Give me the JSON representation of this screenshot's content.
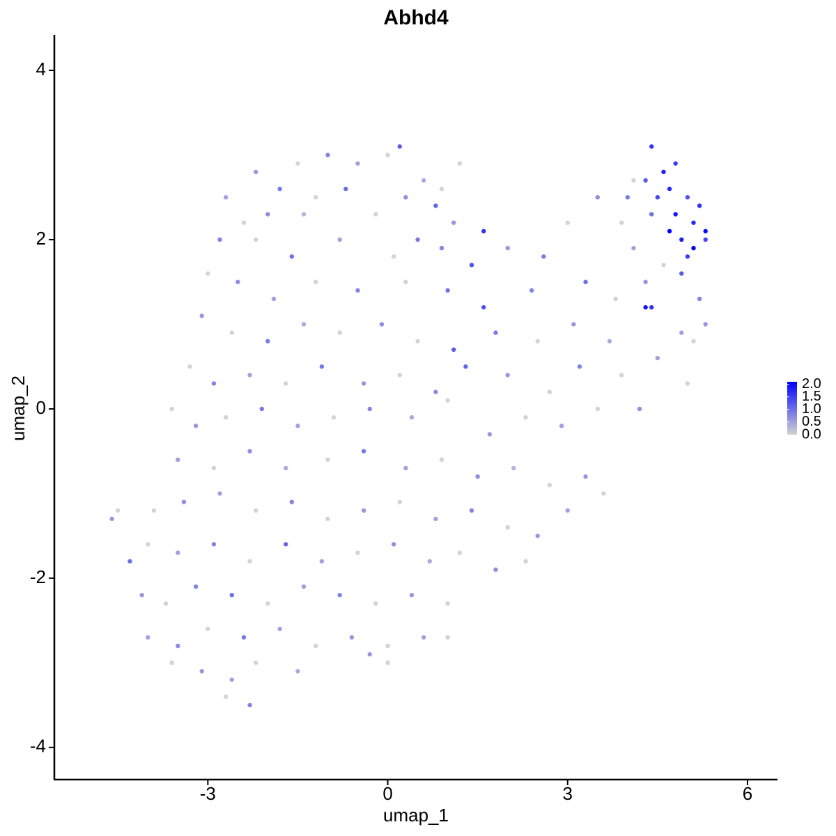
{
  "chart_data": {
    "type": "scatter",
    "title": "Abhd4",
    "x_label": "umap_1",
    "y_label": "umap_2",
    "xlim": [
      -5.56,
      6.5
    ],
    "ylim": [
      -4.38,
      4.42
    ],
    "xticks": [
      -3,
      0,
      3,
      6
    ],
    "yticks": [
      -4,
      -2,
      0,
      2,
      4
    ],
    "low_color": "#d3d3d3",
    "high_color": "#0000ff",
    "colorlim": [
      0,
      2.1
    ],
    "colorticks": [
      {
        "value": 2,
        "label": "2.0"
      },
      {
        "value": 1.5,
        "label": "1.5"
      },
      {
        "value": 1,
        "label": "1.0"
      },
      {
        "value": 0.5,
        "label": "0.5"
      },
      {
        "value": 0,
        "label": "0.0"
      }
    ],
    "x": [
      -2.2,
      -1.5,
      -1,
      -0.5,
      0,
      0.2,
      0.6,
      0.9,
      1.2,
      -1.8,
      -1.2,
      -0.7,
      0.3,
      0.8,
      1.1,
      -2.7,
      -2.4,
      -2,
      -1.4,
      -0.2,
      0.5,
      1.6,
      -2.8,
      -2.2,
      -1.6,
      -0.8,
      0.1,
      0.9,
      1.4,
      -3,
      -2.5,
      -1.9,
      -1.2,
      -0.5,
      0.3,
      1,
      1.6,
      2,
      2.6,
      3,
      3.5,
      3.9,
      4.1,
      3.3,
      2.4,
      3.8,
      4.3,
      -3.1,
      -2.6,
      -2,
      -1.4,
      -0.8,
      -0.1,
      0.5,
      1.1,
      1.8,
      2.5,
      3.1,
      3.7,
      4.4,
      4.9,
      5.1,
      -3.3,
      -2.9,
      -2.3,
      -1.7,
      -1.1,
      -0.4,
      0.2,
      0.8,
      1.3,
      2,
      2.7,
      3.2,
      3.9,
      4.5,
      5,
      4.2,
      3.5,
      2.9,
      -3.6,
      -3.2,
      -2.7,
      -2.1,
      -1.5,
      -0.9,
      -0.3,
      0.4,
      1,
      1.7,
      2.3,
      -3.5,
      -2.9,
      -2.3,
      -1.7,
      -1,
      -0.4,
      0.3,
      0.9,
      1.5,
      2.1,
      2.7,
      3.3,
      3.6,
      3,
      -4.6,
      -4.5,
      -3.9,
      -3.4,
      -2.8,
      -2.2,
      -1.6,
      -1,
      -0.4,
      0.2,
      0.8,
      1.4,
      2,
      2.5,
      -4.3,
      -4,
      -3.5,
      -2.9,
      -2.3,
      -1.7,
      -1.1,
      -0.5,
      0.1,
      0.7,
      1.2,
      1.8,
      2.3,
      -4.1,
      -3.7,
      -3.2,
      -2.6,
      -2,
      -1.4,
      -0.8,
      -0.2,
      0.4,
      1,
      -4,
      -3.5,
      -3,
      -2.4,
      -1.8,
      -1.2,
      -0.6,
      0,
      0.6,
      1,
      -3.6,
      -3.1,
      -2.6,
      -2.2,
      -1.5,
      -0.3,
      -2.7,
      -2.3,
      0,
      4.4,
      4.6,
      4.8,
      4.3,
      4.5,
      4.7,
      5,
      5.2,
      4.4,
      4.8,
      5.1,
      5.3,
      4.7,
      4.9,
      5.1,
      5,
      5.3,
      4.9,
      4.3,
      4.6,
      5.2,
      5.3,
      4,
      4.1
    ],
    "y": [
      2.8,
      2.9,
      3,
      2.9,
      3,
      3.1,
      2.7,
      2.6,
      2.9,
      2.6,
      2.5,
      2.6,
      2.5,
      2.4,
      2.2,
      2.5,
      2.2,
      2.3,
      2.3,
      2.3,
      2,
      2.1,
      2,
      2,
      1.8,
      2,
      1.8,
      1.9,
      1.7,
      1.6,
      1.5,
      1.3,
      1.5,
      1.4,
      1.5,
      1.4,
      1.2,
      1.9,
      1.8,
      2.2,
      2.5,
      2.2,
      1.9,
      1.5,
      1.4,
      1.3,
      1.5,
      1.1,
      0.9,
      0.8,
      1,
      0.9,
      1,
      0.8,
      0.7,
      0.9,
      0.8,
      1,
      0.8,
      1.2,
      0.9,
      0.8,
      0.5,
      0.3,
      0.4,
      0.3,
      0.5,
      0.3,
      0.4,
      0.2,
      0.5,
      0.4,
      0.2,
      0.5,
      0.4,
      0.6,
      0.3,
      0,
      0,
      -0.2,
      0,
      -0.2,
      -0.1,
      0,
      -0.2,
      -0.1,
      0,
      -0.1,
      0.1,
      -0.3,
      -0.1,
      -0.6,
      -0.7,
      -0.5,
      -0.7,
      -0.6,
      -0.5,
      -0.7,
      -0.6,
      -0.8,
      -0.7,
      -0.9,
      -0.8,
      -1,
      -1.2,
      -1.3,
      -1.2,
      -1.2,
      -1.1,
      -1,
      -1.2,
      -1.1,
      -1.3,
      -1.2,
      -1.1,
      -1.3,
      -1.2,
      -1.4,
      -1.5,
      -1.8,
      -1.6,
      -1.7,
      -1.6,
      -1.8,
      -1.6,
      -1.8,
      -1.7,
      -1.6,
      -1.8,
      -1.7,
      -1.9,
      -1.8,
      -2.2,
      -2.3,
      -2.1,
      -2.2,
      -2.3,
      -2.1,
      -2.2,
      -2.3,
      -2.2,
      -2.3,
      -2.7,
      -2.8,
      -2.6,
      -2.7,
      -2.6,
      -2.8,
      -2.7,
      -2.8,
      -2.7,
      -2.7,
      -3,
      -3.1,
      -3.2,
      -3,
      -3.1,
      -2.9,
      -3.4,
      -3.5,
      -3,
      3.1,
      2.8,
      2.9,
      2.7,
      2.5,
      2.6,
      2.5,
      2.4,
      2.3,
      2.3,
      2.2,
      2.1,
      2.1,
      2,
      1.9,
      1.8,
      2,
      1.6,
      1.2,
      1.7,
      1.3,
      1,
      2.5,
      2.7
    ],
    "values": [
      0.6,
      0,
      0.8,
      0.5,
      0,
      1.2,
      0.4,
      0,
      0,
      0.9,
      0,
      1,
      0.7,
      1.1,
      0.6,
      0.5,
      0,
      0.7,
      0.3,
      0,
      0.9,
      1.6,
      0.8,
      0,
      1,
      0.5,
      0,
      0.8,
      1.3,
      0,
      0.7,
      0.5,
      0,
      0.8,
      0,
      1,
      1.3,
      0.6,
      0.9,
      0,
      0.7,
      0,
      0.5,
      1,
      0.8,
      0,
      0.6,
      0.6,
      0,
      0.9,
      0.4,
      0,
      0.7,
      0,
      1.2,
      0.9,
      0,
      0.6,
      0.4,
      1.6,
      0.5,
      0,
      0,
      0.8,
      0.5,
      0,
      0.9,
      0.6,
      0,
      0.7,
      1.1,
      0.6,
      0,
      0.8,
      0,
      0.5,
      0,
      0.7,
      0,
      0.5,
      0,
      0.6,
      0,
      0.9,
      0.5,
      0,
      0.8,
      0.4,
      0,
      0.6,
      0,
      0.5,
      0,
      0.7,
      0.4,
      0,
      0.9,
      0.5,
      0,
      0.7,
      0.3,
      0,
      0.6,
      0,
      0.5,
      0.6,
      0,
      0,
      0.7,
      0.5,
      0,
      0.8,
      0,
      0.6,
      0,
      0.5,
      0.8,
      0,
      0.6,
      1,
      0,
      0.5,
      0.8,
      0,
      1.1,
      0.5,
      0,
      0.7,
      0.4,
      0,
      0.7,
      0,
      0.6,
      0,
      0.8,
      1,
      0,
      0.5,
      0.8,
      0,
      0.6,
      0,
      0.5,
      0.7,
      0,
      0.9,
      0.5,
      0,
      0.6,
      0,
      0.5,
      0,
      0,
      0.6,
      0.5,
      0,
      0.4,
      0.6,
      0,
      0.8,
      0,
      1.6,
      1.8,
      1.5,
      1.2,
      1.4,
      1.7,
      1.3,
      1.6,
      1,
      1.9,
      1.7,
      2,
      2.1,
      1.8,
      2.1,
      1.5,
      1.4,
      1.2,
      1.9,
      0,
      0.8,
      0.6,
      0.9,
      0
    ]
  }
}
